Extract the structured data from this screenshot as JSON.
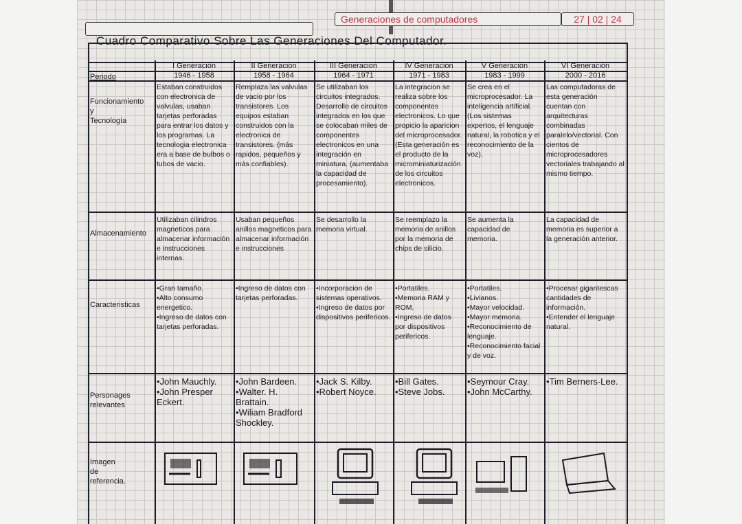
{
  "header": {
    "subject": "Generaciones de computadores",
    "date": "27 | 02 | 24"
  },
  "title": "Cuadro Comparativo Sobre Las Generaciones Del Computador.",
  "row_labels": {
    "periodo": "Periodo",
    "funcionamiento": "Funcionamiento\ny\nTecnología",
    "almacenamiento": "Almacenamiento",
    "caracteristicas": "Caracteristicas",
    "personajes": "Personages\nrelevantes",
    "imagen": "Imagen\nde\nreferencia."
  },
  "generations": [
    {
      "name": "I Generación",
      "period": "1946 - 1958",
      "funcionamiento": "Estaban construidos con electronica de valvulas, usaban tarjetas perforadas para entrar los datos y los programas. La tecnologia electronica era a base de bulbos o tubos de vacio.",
      "almacenamiento": "Utilizaban cilindros magneticos para almacenar información e instrucciones internas.",
      "caracteristicas": "•Gran tamaño.\n•Alto consumo energetico.\n•Ingreso de datos con tarjetas perforadas.",
      "personajes": "•John Mauchly.\n•John Presper Eckert."
    },
    {
      "name": "II Generacion",
      "period": "1958 - 1964",
      "funcionamiento": "Remplaza las valvulas de vacio por los transistores. Los equipos estaban construidos con la electronica de transistores. (más rapidos, pequeños y más confiables).",
      "almacenamiento": "Usaban pequeños anillos magneticos para almacenar información e instrucciones",
      "caracteristicas": "•Ingreso de datos con tarjetas perforadas.",
      "personajes": "•John Bardeen.\n•Walter. H. Brattain.\n•Wiliam Bradford Shockley."
    },
    {
      "name": "III Generacion",
      "period": "1964 - 1971",
      "funcionamiento": "Se utilizaban los circuitos integrados. Desarrollo de circuitos integrados en los que se colocaban miles de componentes electronicos en una integración en miniatura. (aumentaba la capacidad de procesamiento).",
      "almacenamiento": "Se desarrollo la memoria virtual.",
      "caracteristicas": "•Incorporacion de sistemas operativos.\n•Ingreso de datos por dispositivos perifericos.",
      "personajes": "•Jack S. Kilby.\n•Robert Noyce."
    },
    {
      "name": "IV Generación",
      "period": "1971 - 1983",
      "funcionamiento": "La integracion se realiza sobre los componentes electronicos. Lo que propicio la aparicion del microprocesador. (Esta generación es el producto de la microminiaturización de los circuitos electronicos.",
      "almacenamiento": "Se reemplazo la memoria de anillos por la memoria de chips de silicio.",
      "caracteristicas": "•Portatiles.\n•Memoria RAM y ROM.\n•Ingreso de datos por dispositivos perifericos.",
      "personajes": "•Bill Gates.\n•Steve Jobs."
    },
    {
      "name": "V Generación",
      "period": "1983 - 1999",
      "funcionamiento": "Se crea en el microprocesador. La inteligencia artificial. (Los sistemas expertos, el lenguaje natural, la robotica y el reconocimiento de la voz).",
      "almacenamiento": "Se aumenta la capacidad de memoria.",
      "caracteristicas": "•Portatiles.\n•Livianos.\n•Mayor velocidad.\n•Mayor memoria.\n•Reconocimiento de lenguaje.\n•Reconocimiento facial y de voz.",
      "personajes": "•Seymour Cray.\n•John McCarthy."
    },
    {
      "name": "VI Generación",
      "period": "2000 - 2016",
      "funcionamiento": "Las computadoras de esta generación cuentan con arquitecturas combinadas paralelo/vectorial. Con cientos de microprocesadores vectoriales trabajando al mismo tiempo.",
      "almacenamiento": "La capacidad de memoria es superior a la generación anterior.",
      "caracteristicas": "•Procesar gigantescas cantidades de información.\n•Entender el lenguaje natural.",
      "personajes": "•Tim Berners-Lee."
    }
  ],
  "colors": {
    "ink": "#1a1a22",
    "header_ink": "#c2334a",
    "paper": "#e9e8e4"
  }
}
